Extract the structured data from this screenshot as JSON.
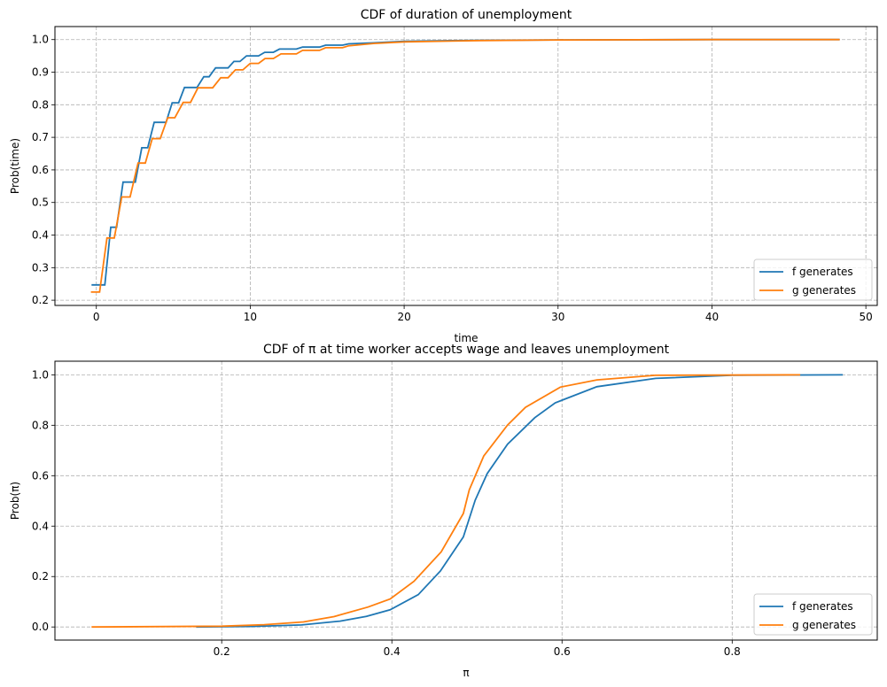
{
  "colors": {
    "f": "#1f77b4",
    "g": "#ff7f0e",
    "grid": "#b0b0b0"
  },
  "chart_data": [
    {
      "type": "line",
      "title": "CDF of duration of unemployment",
      "xlabel": "time",
      "ylabel": "Prob(time)",
      "xlim": [
        -2.69,
        50.74
      ],
      "ylim": [
        0.184,
        1.04
      ],
      "xticks": [
        0,
        10,
        20,
        30,
        40,
        50
      ],
      "xtick_labels": [
        "0",
        "10",
        "20",
        "30",
        "40",
        "50"
      ],
      "yticks": [
        0.2,
        0.3,
        0.4,
        0.5,
        0.6,
        0.7,
        0.8,
        0.9,
        1.0
      ],
      "ytick_labels": [
        "0.2",
        "0.3",
        "0.4",
        "0.5",
        "0.6",
        "0.7",
        "0.8",
        "0.9",
        "1.0"
      ],
      "grid": true,
      "legend": "bottom-right",
      "series": [
        {
          "name": "f generates",
          "color": "#1f77b4",
          "points": [
            [
              -0.31,
              0.247
            ],
            [
              0.55,
              0.247
            ],
            [
              0.94,
              0.424
            ],
            [
              1.32,
              0.424
            ],
            [
              1.74,
              0.5625
            ],
            [
              2.53,
              0.5625
            ],
            [
              2.95,
              0.668
            ],
            [
              3.34,
              0.668
            ],
            [
              3.76,
              0.746
            ],
            [
              4.53,
              0.746
            ],
            [
              4.93,
              0.806
            ],
            [
              5.35,
              0.806
            ],
            [
              5.73,
              0.853
            ],
            [
              6.54,
              0.853
            ],
            [
              6.98,
              0.886
            ],
            [
              7.33,
              0.886
            ],
            [
              7.75,
              0.913
            ],
            [
              8.56,
              0.913
            ],
            [
              8.94,
              0.933
            ],
            [
              9.33,
              0.933
            ],
            [
              9.76,
              0.95
            ],
            [
              10.54,
              0.95
            ],
            [
              10.94,
              0.961
            ],
            [
              11.5,
              0.961
            ],
            [
              11.9,
              0.971
            ],
            [
              13.0,
              0.971
            ],
            [
              13.4,
              0.977
            ],
            [
              14.5,
              0.977
            ],
            [
              14.9,
              0.983
            ],
            [
              16.0,
              0.983
            ],
            [
              16.4,
              0.987
            ],
            [
              18.0,
              0.99
            ],
            [
              20,
              0.995
            ],
            [
              25,
              0.998
            ],
            [
              30,
              0.999
            ],
            [
              40,
              1.0
            ],
            [
              48.3,
              1.0
            ]
          ]
        },
        {
          "name": "g generates",
          "color": "#ff7f0e",
          "points": [
            [
              -0.35,
              0.225
            ],
            [
              0.21,
              0.225
            ],
            [
              0.69,
              0.391
            ],
            [
              1.17,
              0.391
            ],
            [
              1.65,
              0.517
            ],
            [
              2.19,
              0.517
            ],
            [
              2.71,
              0.621
            ],
            [
              3.18,
              0.621
            ],
            [
              3.63,
              0.696
            ],
            [
              4.15,
              0.696
            ],
            [
              4.64,
              0.76
            ],
            [
              5.1,
              0.76
            ],
            [
              5.64,
              0.807
            ],
            [
              6.12,
              0.807
            ],
            [
              6.6,
              0.852
            ],
            [
              7.56,
              0.852
            ],
            [
              8.08,
              0.883
            ],
            [
              8.56,
              0.883
            ],
            [
              9.04,
              0.907
            ],
            [
              9.52,
              0.907
            ],
            [
              10.0,
              0.927
            ],
            [
              10.54,
              0.927
            ],
            [
              10.96,
              0.942
            ],
            [
              11.5,
              0.942
            ],
            [
              12.0,
              0.956
            ],
            [
              13.0,
              0.956
            ],
            [
              13.4,
              0.967
            ],
            [
              14.5,
              0.967
            ],
            [
              14.9,
              0.975
            ],
            [
              16.0,
              0.975
            ],
            [
              16.4,
              0.981
            ],
            [
              18.0,
              0.988
            ],
            [
              20,
              0.993
            ],
            [
              25,
              0.997
            ],
            [
              30,
              0.999
            ],
            [
              40,
              1.0
            ],
            [
              48.3,
              1.0
            ]
          ]
        }
      ]
    },
    {
      "type": "line",
      "title": "CDF of π at time worker accepts wage and leaves unemployment",
      "xlabel": "π",
      "ylabel": "Prob(π)",
      "xlim": [
        0.004,
        0.9705
      ],
      "ylim": [
        -0.052,
        1.054
      ],
      "xticks": [
        0.2,
        0.4,
        0.6,
        0.8
      ],
      "xtick_labels": [
        "0.2",
        "0.4",
        "0.6",
        "0.8"
      ],
      "yticks": [
        0.0,
        0.2,
        0.4,
        0.6,
        0.8,
        1.0
      ],
      "ytick_labels": [
        "0.0",
        "0.2",
        "0.4",
        "0.6",
        "0.8",
        "1.0"
      ],
      "grid": true,
      "legend": "bottom-right",
      "series": [
        {
          "name": "f generates",
          "color": "#1f77b4",
          "points": [
            [
              0.17,
              0.0
            ],
            [
              0.235,
              0.002
            ],
            [
              0.294,
              0.008
            ],
            [
              0.339,
              0.023
            ],
            [
              0.37,
              0.042
            ],
            [
              0.398,
              0.068
            ],
            [
              0.431,
              0.128
            ],
            [
              0.457,
              0.222
            ],
            [
              0.484,
              0.357
            ],
            [
              0.498,
              0.503
            ],
            [
              0.512,
              0.608
            ],
            [
              0.536,
              0.725
            ],
            [
              0.568,
              0.83
            ],
            [
              0.592,
              0.889
            ],
            [
              0.641,
              0.953
            ],
            [
              0.71,
              0.986
            ],
            [
              0.8,
              0.998
            ],
            [
              0.93,
              1.0
            ]
          ]
        },
        {
          "name": "g generates",
          "color": "#ff7f0e",
          "points": [
            [
              0.047,
              0.0
            ],
            [
              0.2,
              0.003
            ],
            [
              0.25,
              0.009
            ],
            [
              0.296,
              0.02
            ],
            [
              0.332,
              0.041
            ],
            [
              0.372,
              0.079
            ],
            [
              0.398,
              0.111
            ],
            [
              0.426,
              0.181
            ],
            [
              0.458,
              0.298
            ],
            [
              0.484,
              0.45
            ],
            [
              0.491,
              0.544
            ],
            [
              0.508,
              0.678
            ],
            [
              0.536,
              0.801
            ],
            [
              0.557,
              0.871
            ],
            [
              0.598,
              0.951
            ],
            [
              0.641,
              0.98
            ],
            [
              0.71,
              0.998
            ],
            [
              0.88,
              1.0
            ]
          ]
        }
      ]
    }
  ]
}
